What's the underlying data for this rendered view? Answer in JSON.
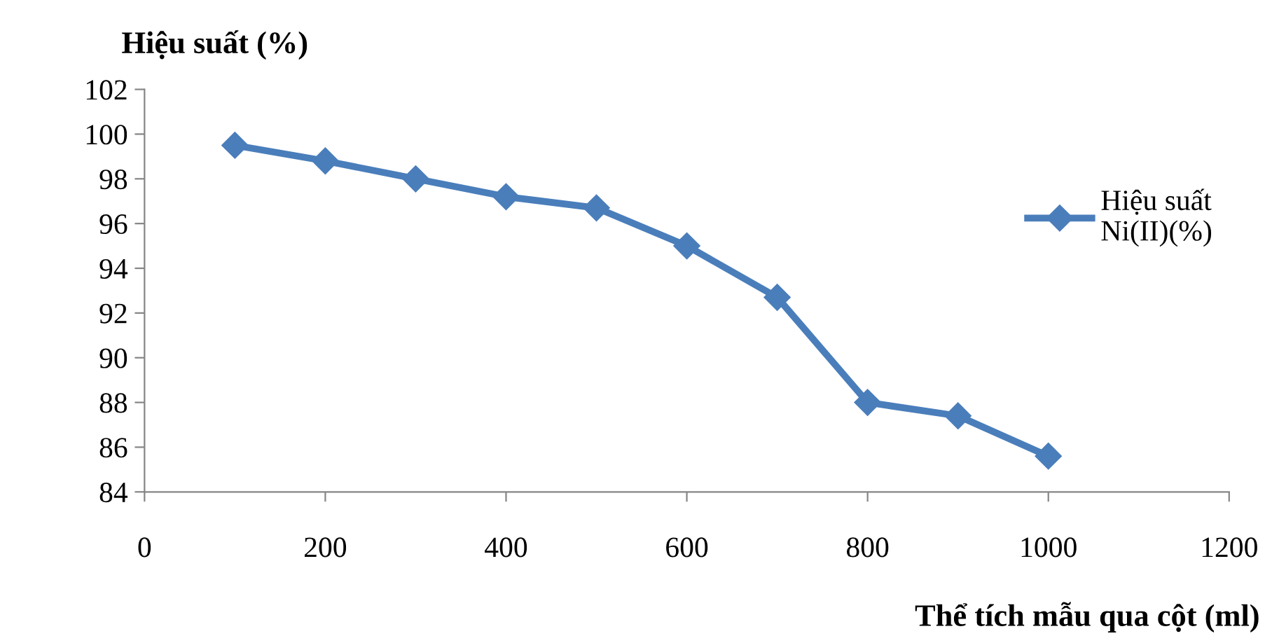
{
  "chart_data": {
    "type": "line",
    "ylabel": "Hiệu suất (%)",
    "xlabel": "Thể tích mẫu qua cột (ml)",
    "x": [
      100,
      200,
      300,
      400,
      500,
      600,
      700,
      800,
      900,
      1000
    ],
    "series": [
      {
        "name": "Hiệu suất\nNi(II)(%)",
        "color": "#4a7ebb",
        "values": [
          99.5,
          98.8,
          98.0,
          97.2,
          96.7,
          95.0,
          92.7,
          88.0,
          87.4,
          85.6
        ]
      }
    ],
    "xlim": [
      0,
      1200
    ],
    "xticks": [
      0,
      200,
      400,
      600,
      800,
      1000,
      1200
    ],
    "ylim": [
      84,
      102
    ],
    "yticks": [
      84,
      86,
      88,
      90,
      92,
      94,
      96,
      98,
      100,
      102
    ],
    "grid": false,
    "legend": "right",
    "marker": "diamond",
    "line_style": "solid"
  }
}
